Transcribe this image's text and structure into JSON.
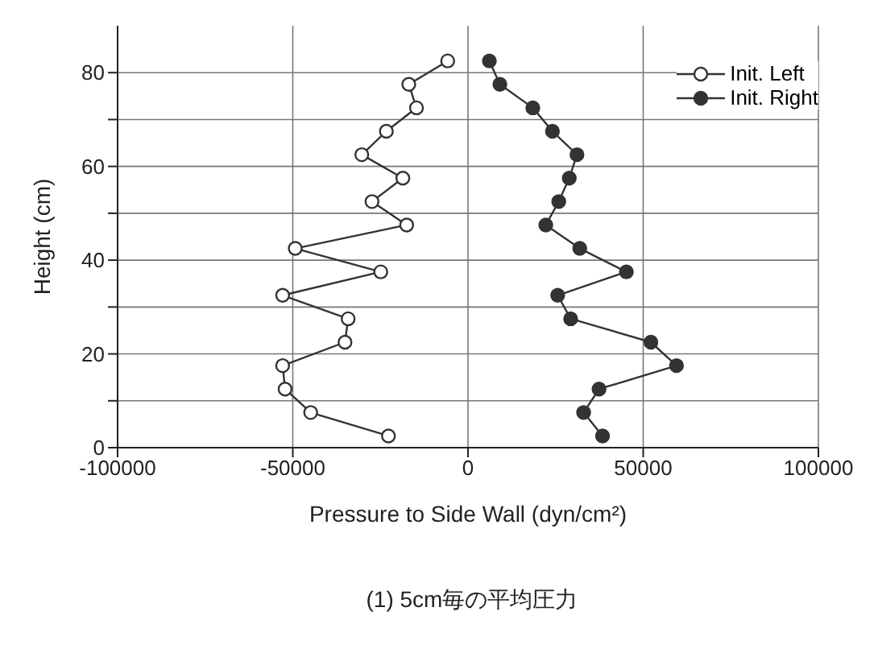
{
  "chart_data": {
    "type": "line",
    "xlabel": "Pressure to Side Wall (dyn/cm²)",
    "ylabel": "Height (cm)",
    "annotations": [
      "(1) 5cm毎の平均圧力"
    ],
    "xlim": [
      -100000,
      100000
    ],
    "xticks": [
      -100000,
      -50000,
      0,
      50000,
      100000
    ],
    "ylim": [
      0,
      90
    ],
    "yticks": [
      0,
      {
        "value": 10,
        "label": null
      },
      20,
      {
        "value": 30,
        "label": null
      },
      40,
      {
        "value": 50,
        "label": null
      },
      60,
      {
        "value": 70,
        "label": null
      },
      80
    ],
    "grid": true,
    "legend": "top right",
    "marker": "circle",
    "line_style": "solid",
    "series": [
      {
        "name": "Init. Left",
        "color": "#333333",
        "x": [
          -22700,
          -44900,
          -52200,
          -52900,
          -35100,
          -34200,
          -52900,
          -24900,
          -49300,
          -17500,
          -27400,
          -18600,
          -30300,
          -23300,
          -14700,
          -16900,
          -5800
        ],
        "values": [
          2.5,
          7.5,
          12.5,
          17.5,
          22.5,
          27.5,
          32.5,
          37.5,
          42.5,
          47.5,
          52.5,
          57.5,
          62.5,
          67.5,
          72.5,
          77.5,
          82.5
        ]
      },
      {
        "name": "Init. Right",
        "color": "#333333",
        "x": [
          38400,
          33000,
          37400,
          59500,
          52200,
          29300,
          25600,
          45200,
          31900,
          22200,
          25900,
          28900,
          31100,
          24100,
          18500,
          9100,
          6100
        ],
        "values": [
          2.5,
          7.5,
          12.5,
          17.5,
          22.5,
          27.5,
          32.5,
          37.5,
          42.5,
          47.5,
          52.5,
          57.5,
          62.5,
          67.5,
          72.5,
          77.5,
          82.5
        ]
      }
    ]
  }
}
